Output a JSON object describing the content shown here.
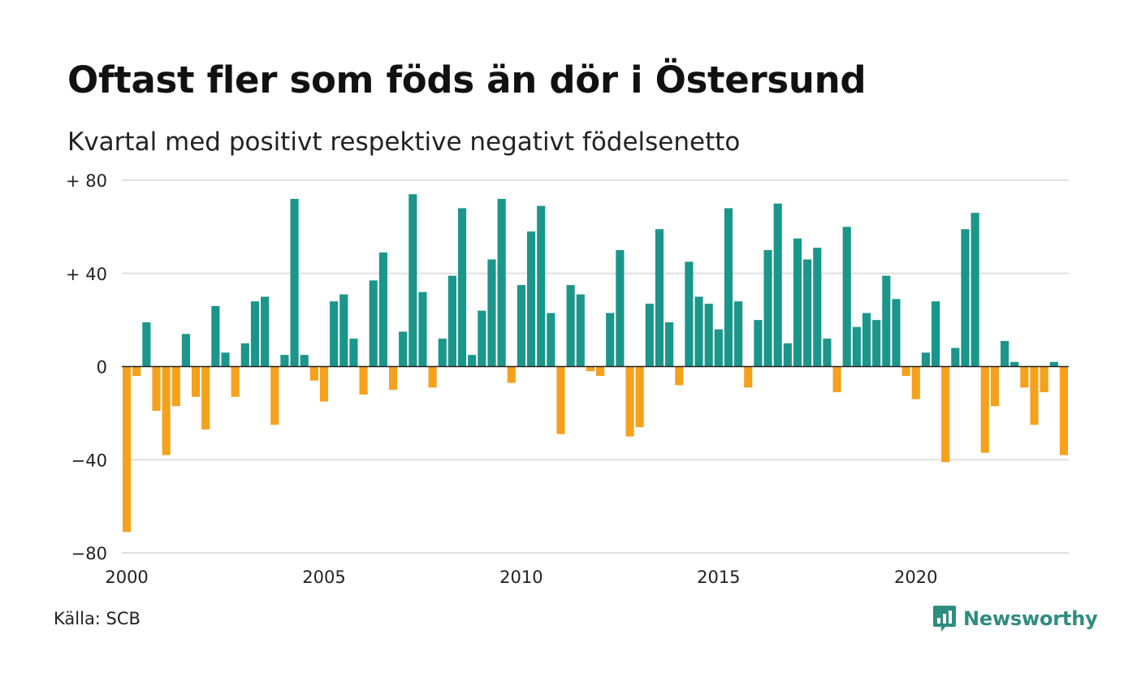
{
  "title": "Oftast fler som föds än dör i Östersund",
  "subtitle": "Kvartal med positivt respektive negativt födelsenetto",
  "source": "Källa: SCB",
  "brand": {
    "name": "Newsworthy",
    "icon": "newsworthy-logo-icon",
    "color": "#2f8c80"
  },
  "chart_data": {
    "type": "bar",
    "title": "Oftast fler som föds än dör i Östersund",
    "subtitle": "Kvartal med positivt respektive negativt födelsenetto",
    "x_start": 2000,
    "period": "quarter",
    "values": [
      -71,
      -4,
      19,
      -19,
      -38,
      -17,
      14,
      -13,
      -27,
      26,
      6,
      -13,
      10,
      28,
      30,
      -25,
      5,
      72,
      5,
      -6,
      -15,
      28,
      31,
      12,
      -12,
      37,
      49,
      -10,
      15,
      74,
      32,
      -9,
      12,
      39,
      68,
      5,
      24,
      46,
      72,
      -7,
      35,
      58,
      69,
      23,
      -29,
      35,
      31,
      -2,
      -4,
      23,
      50,
      -30,
      -26,
      27,
      59,
      19,
      -8,
      45,
      30,
      27,
      16,
      68,
      28,
      -9,
      20,
      50,
      70,
      10,
      55,
      46,
      51,
      12,
      -11,
      60,
      17,
      23,
      20,
      39,
      29,
      -4,
      -14,
      6,
      28,
      -41,
      8,
      59,
      66,
      -37,
      -17,
      11,
      2,
      -9,
      -25,
      -11,
      2,
      -38
    ],
    "ylim": [
      -80,
      80
    ],
    "yticks": [
      -80,
      -40,
      0,
      40,
      80
    ],
    "ytick_labels": [
      "−80",
      "−40",
      "0",
      "+ 40",
      "+ 80"
    ],
    "xticks": [
      2000,
      2005,
      2010,
      2015,
      2020
    ],
    "xtick_labels": [
      "2000",
      "2005",
      "2010",
      "2015",
      "2020"
    ],
    "xlabel": "",
    "ylabel": "",
    "grid": true,
    "colors": {
      "positive": "#1b968a",
      "negative": "#f5a11c",
      "grid": "#e0e0e0",
      "zero": "#222222"
    }
  }
}
